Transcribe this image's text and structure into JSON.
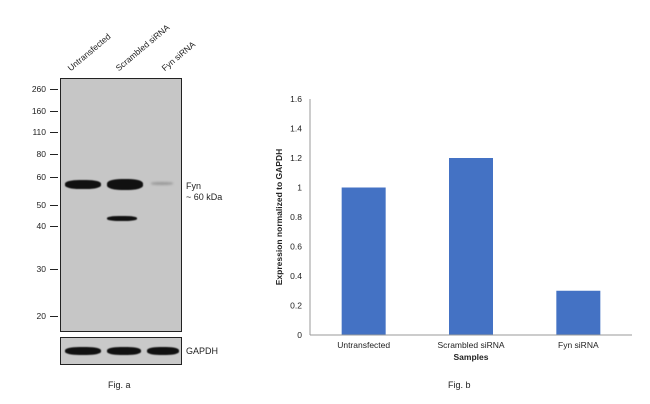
{
  "blot": {
    "lanes": [
      "Untransfected",
      "Scrambled siRNA",
      "Fyn siRNA"
    ],
    "markers": [
      "260",
      "160",
      "110",
      "80",
      "60",
      "50",
      "40",
      "30",
      "20"
    ],
    "band_label_line1": "Fyn",
    "band_label_line2": "~ 60 kDa",
    "loading_control": "GAPDH",
    "caption": "Fig. a"
  },
  "chart_caption": "Fig. b",
  "chart_data": {
    "type": "bar",
    "categories": [
      "Untransfected",
      "Scrambled siRNA",
      "Fyn siRNA"
    ],
    "values": [
      1.0,
      1.2,
      0.3
    ],
    "xlabel": "Samples",
    "ylabel": "Expression normalized to GAPDH",
    "ylim": [
      0,
      1.6
    ],
    "yticks": [
      "0",
      "0.2",
      "0.4",
      "0.6",
      "0.8",
      "1",
      "1.2",
      "1.4",
      "1.6"
    ],
    "bar_color": "#4472c4",
    "grid": false,
    "legend": "none"
  }
}
